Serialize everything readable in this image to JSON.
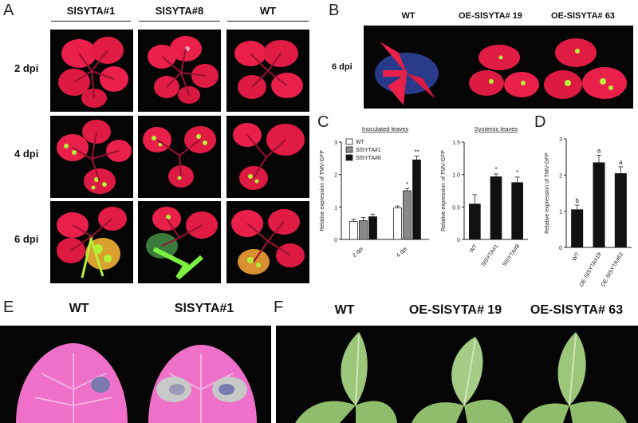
{
  "panel_letters": [
    "A",
    "B",
    "C",
    "D",
    "E",
    "F"
  ],
  "panel_a": {
    "columns": [
      "SlSYTA#1",
      "SlSYTA#8",
      "WT"
    ],
    "rows": [
      "2 dpi",
      "4 dpi",
      "6 dpi"
    ]
  },
  "panel_b": {
    "columns": [
      "WT",
      "OE-SlSYTA# 19",
      "OE-SlSYTA# 63"
    ],
    "row": "6 dpi"
  },
  "panel_e": {
    "columns": [
      "WT",
      "SlSYTA#1"
    ]
  },
  "panel_f": {
    "columns": [
      "WT",
      "OE-SlSYTA# 19",
      "OE-SlSYTA# 63"
    ]
  },
  "colors": {
    "leaf_red": "#e8204a",
    "gfp_green": "#b6f03a",
    "leaf_pink": "#ee70c8",
    "leaf_green": "#9cc77a",
    "bar_black": "#111111",
    "bar_grey": "#8a8a8a"
  },
  "chart_data": [
    {
      "type": "bar",
      "title": "Inoculated leaves",
      "ylabel": "Relative expression of TMV-GFP",
      "categories": [
        "2 dpi",
        "4 dpi"
      ],
      "series": [
        {
          "name": "WT",
          "values": [
            0.55,
            0.97
          ],
          "errors": [
            0.07,
            0.06
          ],
          "sig": [
            "",
            ""
          ]
        },
        {
          "name": "SlSYTA#1",
          "values": [
            0.58,
            1.5
          ],
          "errors": [
            0.09,
            0.07
          ],
          "sig": [
            "",
            "*"
          ]
        },
        {
          "name": "SlSYTA#8",
          "values": [
            0.7,
            2.45
          ],
          "errors": [
            0.08,
            0.12
          ],
          "sig": [
            "",
            "**"
          ]
        }
      ],
      "ylim": [
        0,
        3
      ],
      "yticks": [
        0,
        1,
        2,
        3
      ],
      "legend": "top-left"
    },
    {
      "type": "bar",
      "title": "Systemic leaves",
      "ylabel": "Relative expression of TMV-GFP",
      "categories": [
        "WT",
        "SlSYTA#1",
        "SlSYTA#8"
      ],
      "values": [
        0.55,
        0.97,
        0.88
      ],
      "errors": [
        0.14,
        0.04,
        0.08
      ],
      "sig": [
        "",
        "*",
        "*"
      ],
      "ylim": [
        0,
        1.5
      ],
      "yticks": [
        "0",
        "0.5",
        "1.0",
        "1.5"
      ]
    },
    {
      "type": "bar",
      "ylabel": "Relative expression of TMV-GFP",
      "categories": [
        "WT",
        "OE-SlSYTA#19",
        "OE-SlSYTA#63"
      ],
      "values": [
        1.05,
        2.35,
        2.05
      ],
      "errors": [
        0.12,
        0.2,
        0.18
      ],
      "sig": [
        "b",
        "a",
        "a"
      ],
      "ylim": [
        0,
        3
      ],
      "yticks": [
        0,
        1,
        2,
        3
      ]
    }
  ]
}
